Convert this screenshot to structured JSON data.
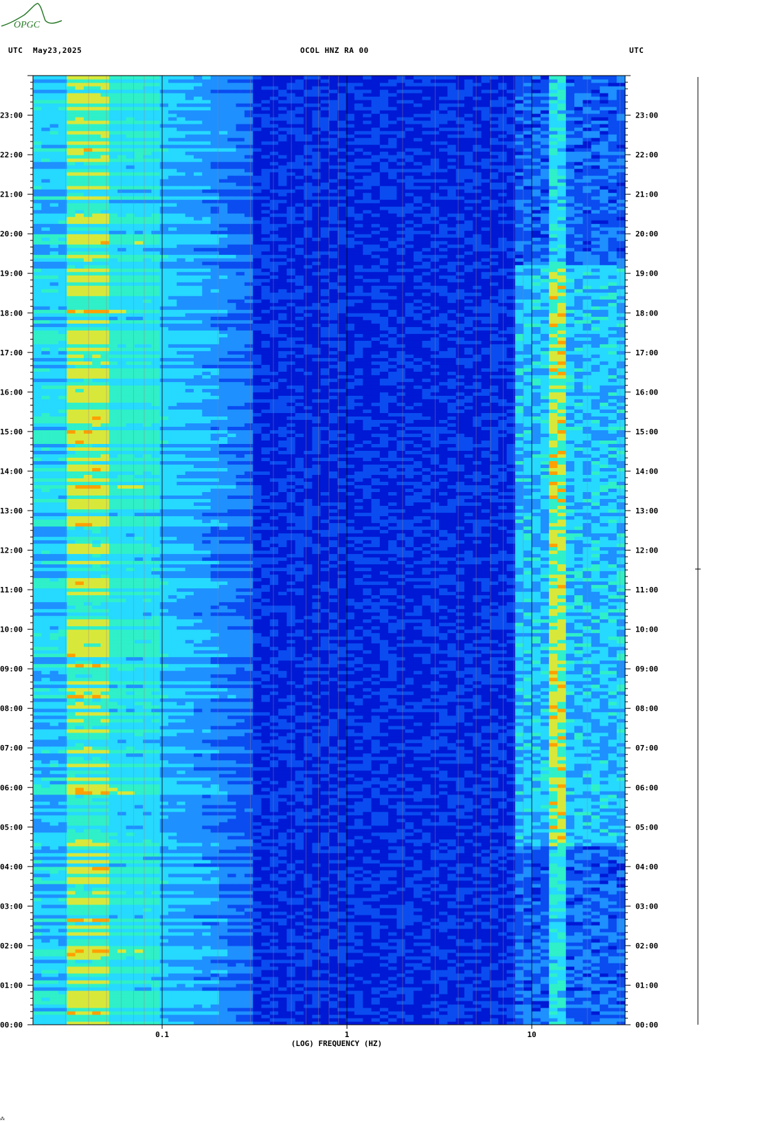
{
  "header": {
    "left_tz": "UTC",
    "date": "May23,2025",
    "station": "OCOL HNZ RA 00",
    "right_tz": "UTC"
  },
  "logo": {
    "text": "OPGC",
    "color": "#2a7a2a"
  },
  "chart_data": {
    "type": "heatmap",
    "title": "OCOL HNZ RA 00",
    "xlabel": "(LOG) FREQUENCY (HZ)",
    "x_scale": "log",
    "xlim": [
      0.02,
      32
    ],
    "x_ticks": [
      {
        "value": 0.1,
        "label": "0.1"
      },
      {
        "value": 1,
        "label": "1"
      },
      {
        "value": 10,
        "label": "10"
      }
    ],
    "ylim_hours": [
      0,
      24
    ],
    "y_ticks": [
      "00:00",
      "01:00",
      "02:00",
      "03:00",
      "04:00",
      "05:00",
      "06:00",
      "07:00",
      "08:00",
      "09:00",
      "10:00",
      "11:00",
      "12:00",
      "13:00",
      "14:00",
      "15:00",
      "16:00",
      "17:00",
      "18:00",
      "19:00",
      "20:00",
      "21:00",
      "22:00",
      "23:00"
    ],
    "colormap": [
      "#0019d4",
      "#0a4cf0",
      "#1e90ff",
      "#26d9ff",
      "#2ff0c8",
      "#d8e83a",
      "#ffa000",
      "#c80000"
    ],
    "event_hours_utc": [
      4.5,
      19.2
    ],
    "notes": ""
  },
  "footer": {
    "mark": "⁂"
  }
}
